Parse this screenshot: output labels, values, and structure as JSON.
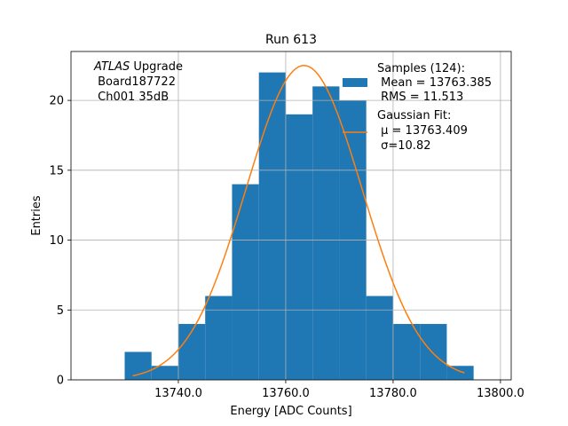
{
  "chart_data": {
    "type": "bar",
    "title": "Run 613",
    "xlabel": "Energy [ADC Counts]",
    "ylabel": "Entries",
    "xlim": [
      13720,
      13802
    ],
    "ylim": [
      0,
      23.5
    ],
    "grid": true,
    "x_ticks": [
      13740,
      13760,
      13780,
      13800
    ],
    "x_tick_labels": [
      "13740.0",
      "13760.0",
      "13780.0",
      "13800.0"
    ],
    "y_ticks": [
      0,
      5,
      10,
      15,
      20
    ],
    "y_tick_labels": [
      "0",
      "5",
      "10",
      "15",
      "20"
    ],
    "annotation": {
      "italic": "ATLAS",
      "line1_rest": " Upgrade",
      "line2": " Board187722",
      "line3": " Ch001 35dB"
    },
    "legend": {
      "placement": "top-right",
      "histogram_label": [
        "Samples (124):",
        " Mean = 13763.385",
        " RMS = 11.513"
      ],
      "fit_label": [
        "Gaussian Fit:",
        " μ = 13763.409",
        " σ=10.82"
      ]
    },
    "histogram": {
      "color": "#1f77b4",
      "bin_edges": [
        13730,
        13735,
        13740,
        13745,
        13750,
        13755,
        13760,
        13765,
        13770,
        13775,
        13780,
        13785,
        13790,
        13795
      ],
      "counts": [
        2,
        1,
        4,
        6,
        14,
        22,
        19,
        21,
        20,
        6,
        4,
        4,
        1
      ]
    },
    "fit": {
      "color": "#ff7f0e",
      "mu": 13763.409,
      "sigma": 10.82,
      "amplitude": 22.5,
      "x_range": [
        13731.5,
        13793.3
      ]
    }
  }
}
